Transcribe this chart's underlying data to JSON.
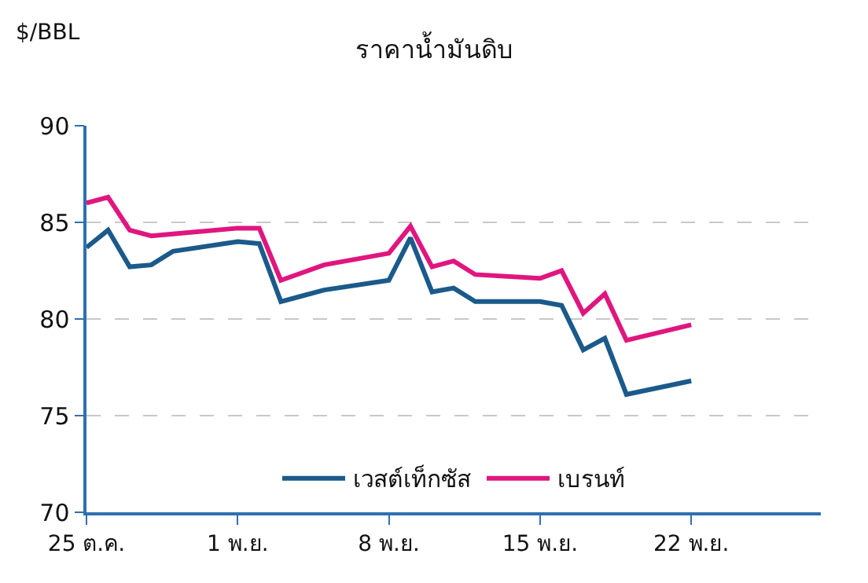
{
  "chart_data": {
    "type": "line",
    "title": "ราคาน้ำมันดิบ",
    "ylabel": "$/BBL",
    "x": [
      "--10-25",
      "--10-26",
      "--10-27",
      "--10-28",
      "--10-29",
      "--11-01",
      "--11-02",
      "--11-03",
      "--11-04",
      "--11-05",
      "--11-08",
      "--11-09",
      "--11-10",
      "--11-11",
      "--11-12",
      "--11-15",
      "--11-16",
      "--11-17",
      "--11-18",
      "--11-19",
      "--11-22"
    ],
    "series": [
      {
        "name": "เวสต์เท็กซัส",
        "color": "#1b5a8a",
        "values": [
          83.7,
          84.6,
          82.7,
          82.8,
          83.5,
          84.0,
          83.9,
          80.9,
          81.2,
          81.5,
          82.0,
          84.2,
          81.4,
          81.6,
          80.9,
          80.9,
          80.7,
          78.4,
          79.0,
          76.1,
          76.8
        ]
      },
      {
        "name": "เบรนท์",
        "color": "#e0167f",
        "values": [
          86.0,
          86.3,
          84.6,
          84.3,
          84.4,
          84.7,
          84.7,
          82.0,
          82.4,
          82.8,
          83.4,
          84.8,
          82.7,
          83.0,
          82.3,
          82.1,
          82.5,
          80.3,
          81.3,
          78.9,
          79.7
        ]
      }
    ],
    "xlim": [
      "--10-25",
      "--11-28"
    ],
    "xticks": [
      {
        "value": "--10-25",
        "label": "25 ต.ค."
      },
      {
        "value": "--11-01",
        "label": "1 พ.ย."
      },
      {
        "value": "--11-08",
        "label": "8 พ.ย."
      },
      {
        "value": "--11-15",
        "label": "15 พ.ย."
      },
      {
        "value": "--11-22",
        "label": "22 พ.ย."
      }
    ],
    "ylim": [
      70,
      90
    ],
    "yticks": [
      70,
      75,
      80,
      85,
      90
    ],
    "grid": "y",
    "legend": "bottom",
    "marker": "none",
    "line_style": "solid"
  }
}
